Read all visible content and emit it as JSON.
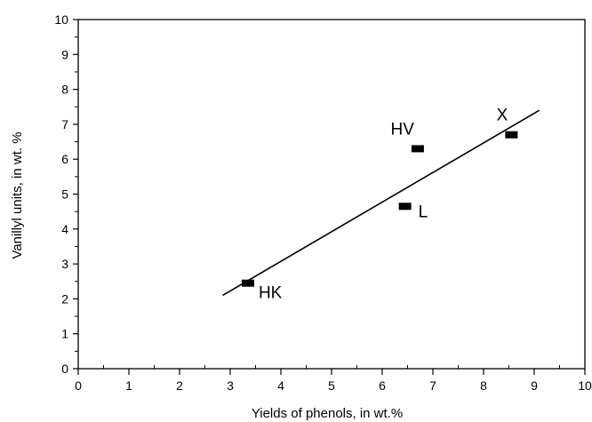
{
  "chart_data": {
    "type": "scatter",
    "title": "",
    "xlabel": "Yields of phenols, in wt.%",
    "ylabel": "Vanillyl units, in wt. %",
    "xlim": [
      0,
      10
    ],
    "ylim": [
      0,
      10
    ],
    "x_ticks": [
      0,
      1,
      2,
      3,
      4,
      5,
      6,
      7,
      8,
      9,
      10
    ],
    "y_ticks": [
      0,
      1,
      2,
      3,
      4,
      5,
      6,
      7,
      8,
      9,
      10
    ],
    "grid": false,
    "legend": "none",
    "points": [
      {
        "label": "HK",
        "x": 3.35,
        "y": 2.45
      },
      {
        "label": "L",
        "x": 6.45,
        "y": 4.65
      },
      {
        "label": "HV",
        "x": 6.7,
        "y": 6.3
      },
      {
        "label": "X",
        "x": 8.55,
        "y": 6.7
      }
    ],
    "trendline": {
      "x": [
        2.85,
        9.1
      ],
      "y": [
        2.1,
        7.4
      ]
    },
    "colors": {
      "ink": "#000000"
    }
  }
}
